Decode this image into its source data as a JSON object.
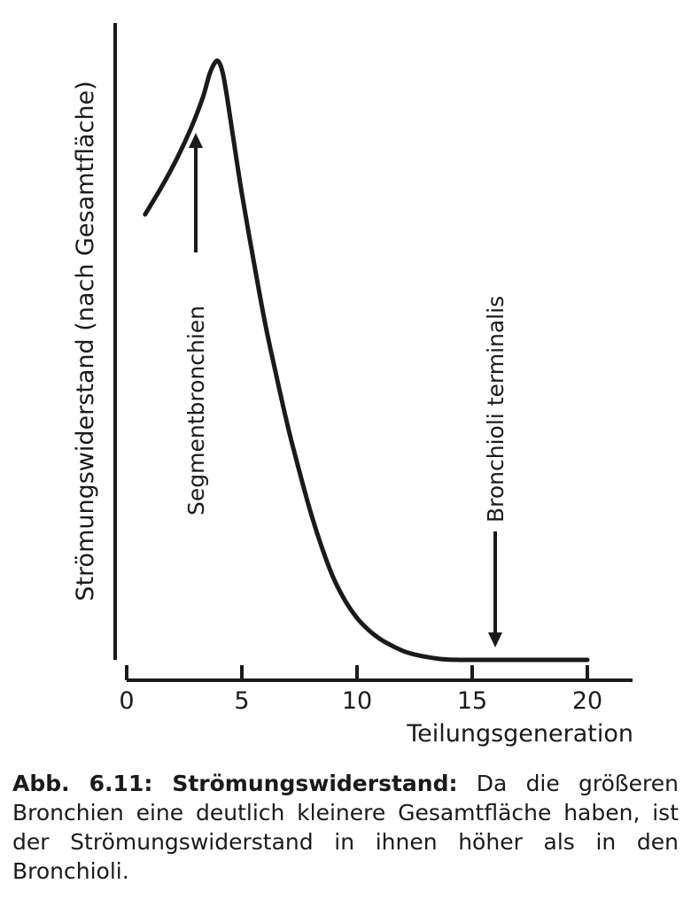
{
  "chart_data": {
    "type": "line",
    "xlabel": "Teilungsgeneration",
    "ylabel": "Strömungswiderstand (nach Gesamtfläche)",
    "xlim": [
      0,
      20
    ],
    "x_ticks": [
      0,
      5,
      10,
      15,
      20
    ],
    "y_tick_labels": false,
    "grid": false,
    "series": [
      {
        "x": [
          0.8,
          1.5,
          2.2,
          2.8,
          3.3,
          3.6,
          3.85,
          4.0,
          4.15,
          4.3,
          4.6,
          5.0,
          5.5,
          6.0,
          6.5,
          7.0,
          7.5,
          8.0,
          8.5,
          9.0,
          9.5,
          10.0,
          10.5,
          11.0,
          11.5,
          12.0,
          12.5,
          13.0,
          13.5,
          14.0,
          14.5,
          15.0,
          15.5,
          16.0,
          17.0,
          18.0,
          19.0,
          20.0
        ],
        "y": [
          0.745,
          0.79,
          0.84,
          0.89,
          0.94,
          0.98,
          1.0,
          1.0,
          0.985,
          0.955,
          0.88,
          0.78,
          0.67,
          0.565,
          0.475,
          0.39,
          0.315,
          0.245,
          0.185,
          0.135,
          0.098,
          0.07,
          0.05,
          0.035,
          0.024,
          0.015,
          0.009,
          0.005,
          0.002,
          0.0005,
          0.0,
          0.0,
          0.0,
          0.0,
          0.0,
          0.0,
          0.0,
          0.0
        ]
      }
    ],
    "annotations": [
      {
        "text": "Segmentbronchien",
        "x": 3.0,
        "arrow": "up"
      },
      {
        "text": "Bronchioli terminalis",
        "x": 16.0,
        "arrow": "down"
      }
    ]
  },
  "caption": {
    "label": "Abb. 6.11: Strömungswiderstand:",
    "text": "Da die größeren Bronchien eine deutlich kleinere Gesamtfläche haben, ist der Strömungswiderstand in ihnen höher als in den Bronchioli."
  }
}
